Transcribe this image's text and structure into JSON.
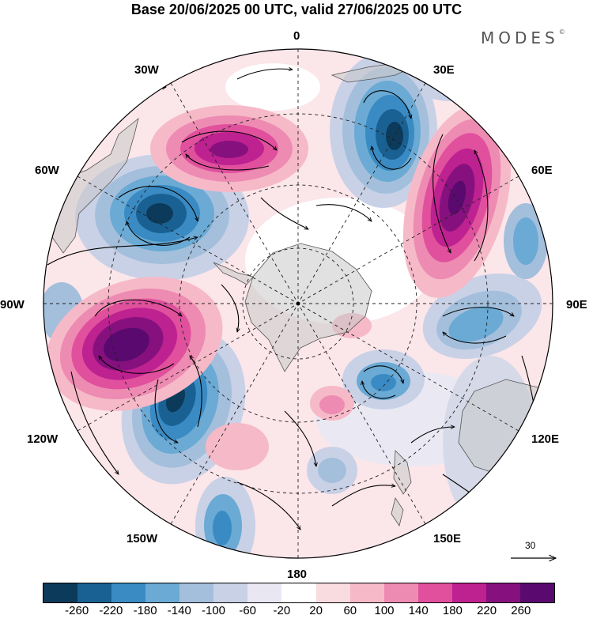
{
  "title": "Base 20/06/2025 00 UTC, valid 27/06/2025 00 UTC",
  "logo": "MODES",
  "logo_mark": "©",
  "map": {
    "projection": "south-polar-stereographic",
    "longitude_labels": {
      "top": "0",
      "top_right": "30E",
      "upper_right": "60E",
      "right": "90E",
      "lower_right": "120E",
      "bottom_right": "150E",
      "bottom": "180",
      "bottom_left": "150W",
      "lower_left": "120W",
      "left": "90W",
      "upper_left": "60W",
      "top_left": "30W"
    },
    "reference_vector_label": "30"
  },
  "colorbar": {
    "colors": [
      "#0c3a5a",
      "#1a6193",
      "#3a8bc3",
      "#6aaad4",
      "#a4bfdc",
      "#c9d1e6",
      "#e9e8f2",
      "#ffffff",
      "#f8dce0",
      "#f6b9c8",
      "#ee8bb2",
      "#e0509d",
      "#be2190",
      "#86117e",
      "#5a0a6e"
    ],
    "labels": [
      "-260",
      "-220",
      "-180",
      "-140",
      "-100",
      "-60",
      "-20",
      "20",
      "60",
      "100",
      "140",
      "180",
      "220",
      "260"
    ]
  }
}
